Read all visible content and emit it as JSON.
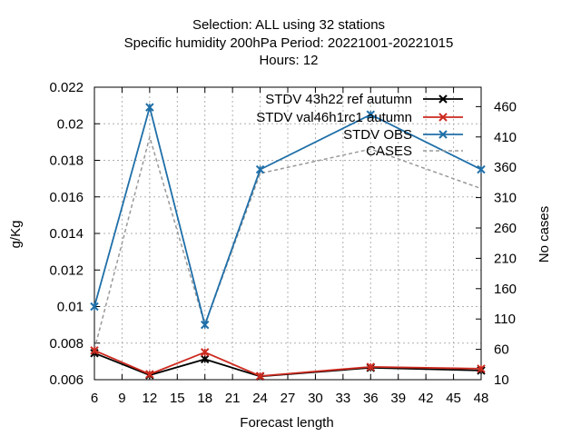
{
  "chart_data": {
    "type": "line",
    "title_lines": [
      "Selection: ALL using    32 stations",
      "Specific humidity 200hPa   Period: 20221001-20221015",
      "Hours:  12"
    ],
    "xlabel": "Forecast length",
    "ylabel": "g/Kg",
    "y2label": "No cases",
    "x_ticks": [
      6,
      9,
      12,
      15,
      18,
      21,
      24,
      27,
      30,
      33,
      36,
      39,
      42,
      45,
      48
    ],
    "xlim": [
      6,
      48
    ],
    "y_ticks": [
      0.006,
      0.008,
      0.01,
      0.012,
      0.014,
      0.016,
      0.018,
      0.02,
      0.022
    ],
    "y_tick_labels": [
      "0.006",
      "0.008",
      "0.01",
      "0.012",
      "0.014",
      "0.016",
      "0.018",
      "0.02",
      "0.022"
    ],
    "ylim": [
      0.006,
      0.022
    ],
    "y2_ticks": [
      10,
      60,
      110,
      160,
      210,
      260,
      310,
      360,
      410,
      460
    ],
    "y2lim": [
      10,
      492
    ],
    "grid": true,
    "legend_position": "top-right",
    "series": [
      {
        "name": "STDV 43h22_ref_autumn",
        "legend_label": "STDV 43h22 ref autumn",
        "color": "#000000",
        "style": "solid",
        "marker": "x",
        "axis": "y",
        "x": [
          6,
          12,
          18,
          24,
          36,
          48
        ],
        "y": [
          0.00745,
          0.00625,
          0.00712,
          0.00618,
          0.00665,
          0.0065
        ]
      },
      {
        "name": "STDV val46h1rc1_autumn",
        "legend_label": "STDV val46h1rc1 autumn",
        "color": "#cc2a1f",
        "style": "solid",
        "marker": "x",
        "axis": "y",
        "x": [
          6,
          12,
          18,
          24,
          36,
          48
        ],
        "y": [
          0.0076,
          0.0063,
          0.0075,
          0.0062,
          0.0067,
          0.0066
        ]
      },
      {
        "name": "STDV OBS",
        "legend_label": "STDV OBS",
        "color": "#1f6fa8",
        "style": "solid",
        "marker": "x",
        "axis": "y",
        "x": [
          6,
          12,
          18,
          24,
          36,
          48
        ],
        "y": [
          0.01,
          0.0209,
          0.009,
          0.0175,
          0.0205,
          0.0175
        ]
      },
      {
        "name": "CASES",
        "legend_label": "CASES",
        "color": "#999999",
        "style": "dashed",
        "marker": "none",
        "axis": "y2",
        "x": [
          6,
          12,
          18,
          24,
          36,
          48
        ],
        "y": [
          60,
          410,
          100,
          350,
          390,
          325
        ]
      }
    ]
  }
}
